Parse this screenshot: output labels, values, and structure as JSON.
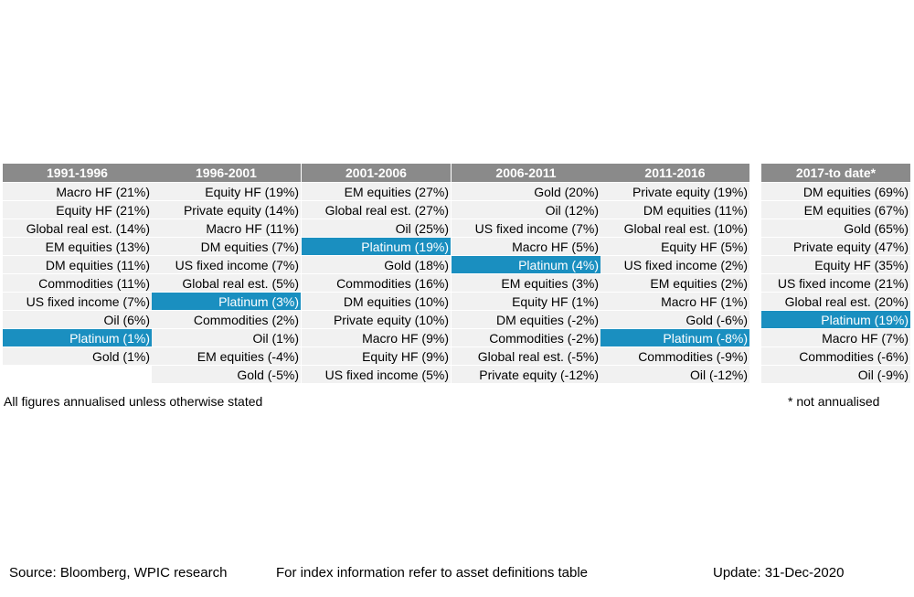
{
  "chart_data": {
    "type": "table",
    "colors": {
      "header": "#8a8a8a",
      "cell": "#f1f1f1",
      "highlight": "#1a8fc0"
    },
    "highlight_asset": "Platinum",
    "columns": [
      {
        "header": "1991-1996",
        "cells": [
          "Macro HF (21%)",
          "Equity HF (21%)",
          "Global real est. (14%)",
          "EM equities (13%)",
          "DM equities (11%)",
          "Commodities (11%)",
          "US fixed income (7%)",
          "Oil (6%)",
          "Platinum (1%)",
          "Gold (1%)",
          ""
        ]
      },
      {
        "header": "1996-2001",
        "cells": [
          "Equity HF (19%)",
          "Private equity (14%)",
          "Macro HF (11%)",
          "DM equities (7%)",
          "US fixed income (7%)",
          "Global real est. (5%)",
          "Platinum (3%)",
          "Commodities (2%)",
          "Oil (1%)",
          "EM equities (-4%)",
          "Gold (-5%)"
        ]
      },
      {
        "header": "2001-2006",
        "cells": [
          "EM equities (27%)",
          "Global real est. (27%)",
          "Oil (25%)",
          "Platinum (19%)",
          "Gold (18%)",
          "Commodities (16%)",
          "DM equities (10%)",
          "Private equity (10%)",
          "Macro HF (9%)",
          "Equity HF (9%)",
          "US fixed income (5%)"
        ]
      },
      {
        "header": "2006-2011",
        "cells": [
          "Gold (20%)",
          "Oil (12%)",
          "US fixed income (7%)",
          "Macro HF (5%)",
          "Platinum (4%)",
          "EM equities (3%)",
          "Equity HF (1%)",
          "DM equities (-2%)",
          "Commodities (-2%)",
          "Global real est. (-5%)",
          "Private equity (-12%)"
        ]
      },
      {
        "header": "2011-2016",
        "cells": [
          "Private equity (19%)",
          "DM equities (11%)",
          "Global real est. (10%)",
          "Equity HF (5%)",
          "US fixed income (2%)",
          "EM equities (2%)",
          "Macro HF (1%)",
          "Gold (-6%)",
          "Platinum (-8%)",
          "Commodities (-9%)",
          "Oil (-12%)"
        ]
      },
      {
        "header": "2017-to date*",
        "cells": [
          "DM equities (69%)",
          "EM equities (67%)",
          "Gold (65%)",
          "Private equity (47%)",
          "Equity HF (35%)",
          "US fixed income (21%)",
          "Global real est. (20%)",
          "Platinum (19%)",
          "Macro HF (7%)",
          "Commodities (-6%)",
          "Oil (-9%)"
        ]
      }
    ]
  },
  "notes": {
    "annualised": "All figures annualised unless otherwise stated",
    "not_annualised": "* not annualised"
  },
  "footer": {
    "source": "Source: Bloomberg, WPIC research",
    "index_info": "For index information refer to asset definitions table",
    "update": "Update: 31-Dec-2020"
  }
}
